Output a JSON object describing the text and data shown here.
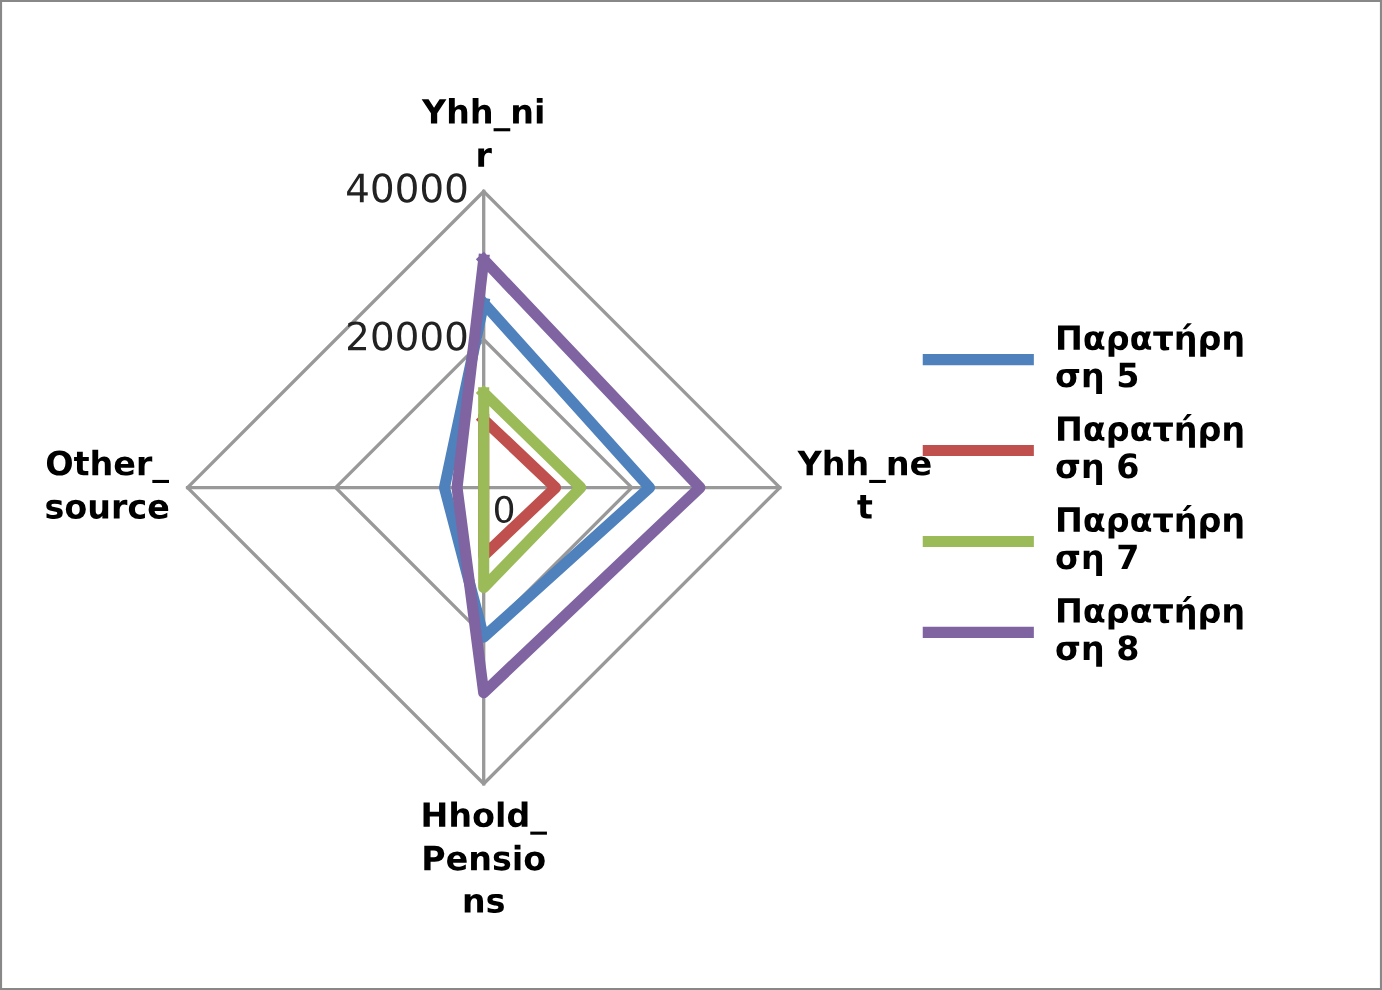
{
  "chart_data": {
    "type": "radar",
    "categories": [
      "Yhh_nir",
      "Yhh_net",
      "Hhold_Pensions",
      "Other_source"
    ],
    "series": [
      {
        "name": "Παρατήρηση 5",
        "color": "#4f81bd",
        "values": [
          24900,
          22400,
          20200,
          5300
        ]
      },
      {
        "name": "Παρατήρηση 6",
        "color": "#c0504d",
        "values": [
          9200,
          9700,
          9200,
          0
        ]
      },
      {
        "name": "Παρατήρηση 7",
        "color": "#9bbb59",
        "values": [
          12800,
          13100,
          13500,
          0
        ]
      },
      {
        "name": "Παρατήρηση 8",
        "color": "#8064a2",
        "values": [
          30800,
          29200,
          27700,
          3600
        ]
      }
    ],
    "ylim": [
      0,
      40000
    ],
    "yticks": [
      0,
      20000,
      40000
    ],
    "grid": true,
    "legend": "right",
    "marker": "none"
  }
}
